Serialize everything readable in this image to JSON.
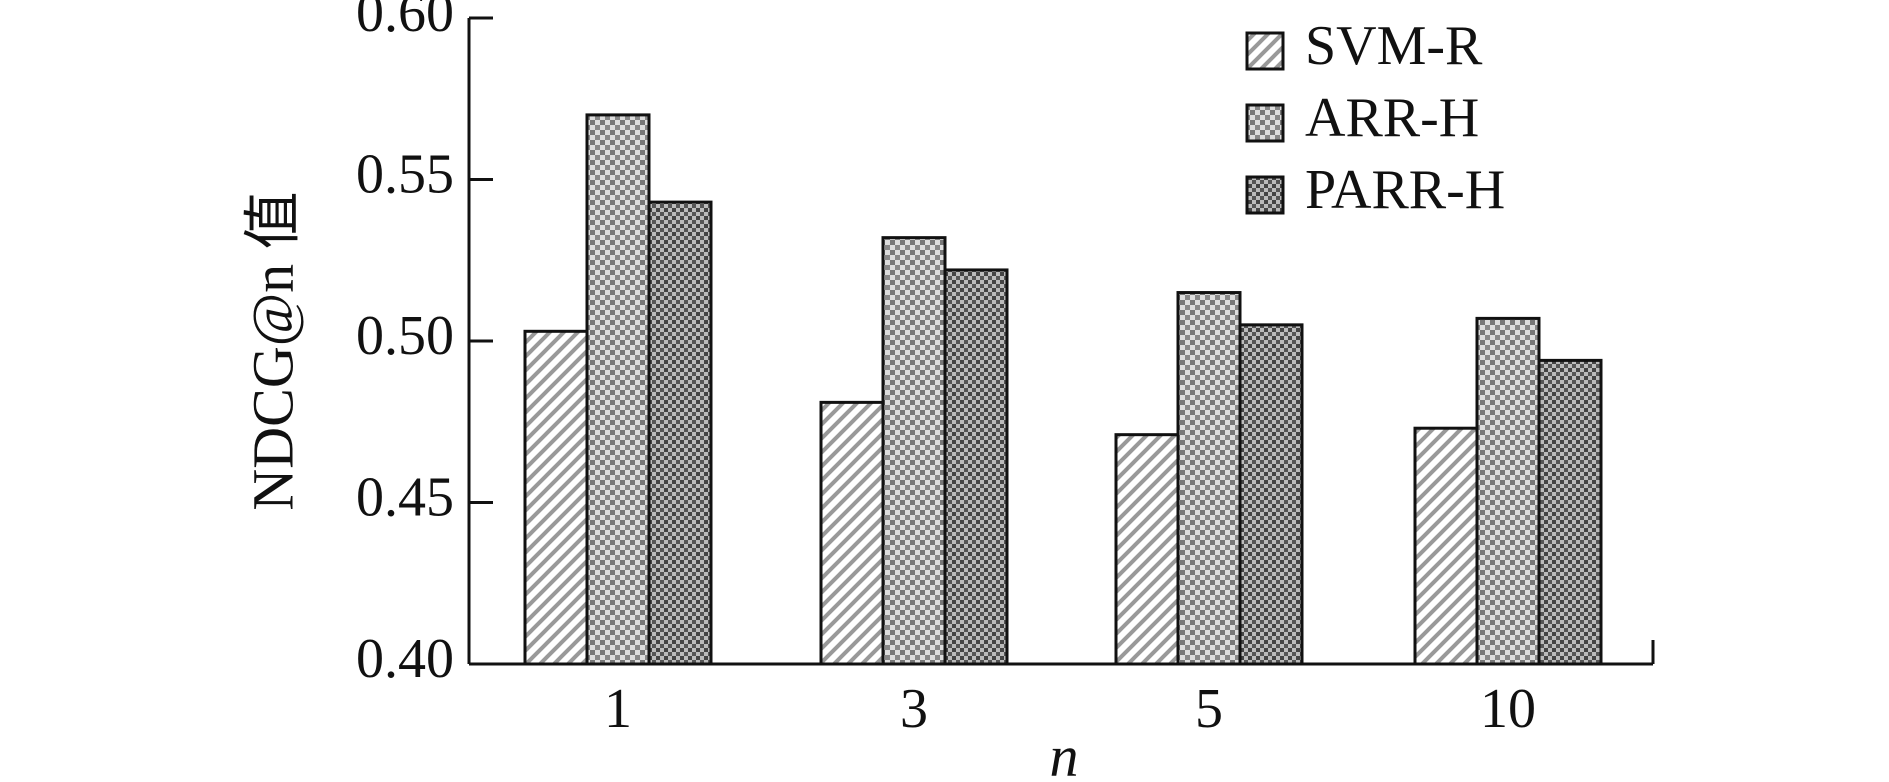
{
  "chart_data": {
    "type": "bar",
    "categories": [
      "1",
      "3",
      "5",
      "10"
    ],
    "series": [
      {
        "name": "SVM-R",
        "pattern": "diagonal",
        "values": [
          0.503,
          0.481,
          0.471,
          0.473
        ]
      },
      {
        "name": "ARR-H",
        "pattern": "check",
        "values": [
          0.57,
          0.532,
          0.515,
          0.507
        ]
      },
      {
        "name": "PARR-H",
        "pattern": "dense-check",
        "values": [
          0.543,
          0.522,
          0.505,
          0.494
        ]
      }
    ],
    "ylim": [
      0.4,
      0.6
    ],
    "yticks": [
      {
        "value": 0.4,
        "label": "0.40"
      },
      0.45,
      {
        "value": 0.5,
        "label": "0.50"
      },
      0.55,
      {
        "value": 0.6,
        "label": "0.60"
      }
    ],
    "x_label": "n",
    "y_label": "NDCG@n 值",
    "legend": "top-right"
  }
}
